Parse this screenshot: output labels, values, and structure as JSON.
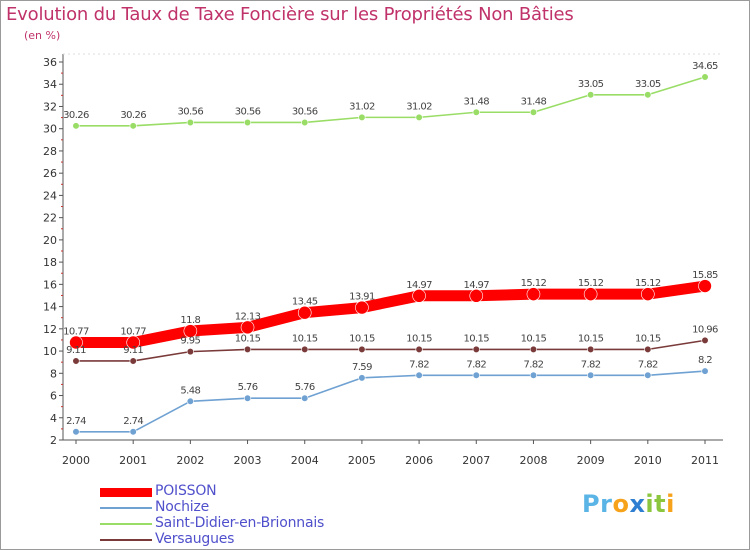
{
  "chart_data": {
    "type": "line",
    "title": "Evolution du Taux de Taxe Foncière sur les Propriétés Non Bâties",
    "unit_label": "(en %)",
    "x": [
      "2000",
      "2001",
      "2002",
      "2003",
      "2004",
      "2005",
      "2006",
      "2007",
      "2008",
      "2009",
      "2010",
      "2011"
    ],
    "ylim": [
      2,
      36
    ],
    "yticks": [
      2,
      4,
      6,
      8,
      10,
      12,
      14,
      16,
      18,
      20,
      22,
      24,
      26,
      28,
      30,
      32,
      34,
      36
    ],
    "grid": false,
    "legend_position": "bottom-left",
    "series": [
      {
        "name": "POISSON",
        "color": "#ff0000",
        "values": [
          10.77,
          10.77,
          11.8,
          12.13,
          13.45,
          13.91,
          14.97,
          14.97,
          15.12,
          15.12,
          15.12,
          15.85
        ],
        "labels": [
          "10.77",
          "10.77",
          "11.8",
          "12.13",
          "13.45",
          "13.91",
          "14.97",
          "14.97",
          "15.12",
          "15.12",
          "15.12",
          "15.85"
        ]
      },
      {
        "name": "Nochize",
        "color": "#6fa1d2",
        "values": [
          2.74,
          2.74,
          5.48,
          5.76,
          5.76,
          7.59,
          7.82,
          7.82,
          7.82,
          7.82,
          7.82,
          8.2
        ],
        "labels": [
          "2.74",
          "2.74",
          "5.48",
          "5.76",
          "5.76",
          "7.59",
          "7.82",
          "7.82",
          "7.82",
          "7.82",
          "7.82",
          "8.2"
        ]
      },
      {
        "name": "Saint-Didier-en-Brionnais",
        "color": "#99dd66",
        "values": [
          30.26,
          30.26,
          30.56,
          30.56,
          30.56,
          31.02,
          31.02,
          31.48,
          31.48,
          33.05,
          33.05,
          34.65
        ],
        "labels": [
          "30.26",
          "30.26",
          "30.56",
          "30.56",
          "30.56",
          "31.02",
          "31.02",
          "31.48",
          "31.48",
          "33.05",
          "33.05",
          "34.65"
        ]
      },
      {
        "name": "Versaugues",
        "color": "#7a3a3a",
        "values": [
          9.11,
          9.11,
          9.95,
          10.15,
          10.15,
          10.15,
          10.15,
          10.15,
          10.15,
          10.15,
          10.15,
          10.96
        ],
        "labels": [
          "9.11",
          "9.11",
          "9.95",
          "10.15",
          "10.15",
          "10.15",
          "10.15",
          "10.15",
          "10.15",
          "10.15",
          "10.15",
          "10.96"
        ]
      }
    ]
  },
  "branding": {
    "logo_letters": [
      "P",
      "r",
      "o",
      "x",
      "i",
      "t",
      "i"
    ],
    "logo_colors": [
      "#5ab4e6",
      "#5ab4e6",
      "#f7a21b",
      "#2e7fd1",
      "#8cc63f",
      "#8cc63f",
      "#f7a21b"
    ]
  }
}
